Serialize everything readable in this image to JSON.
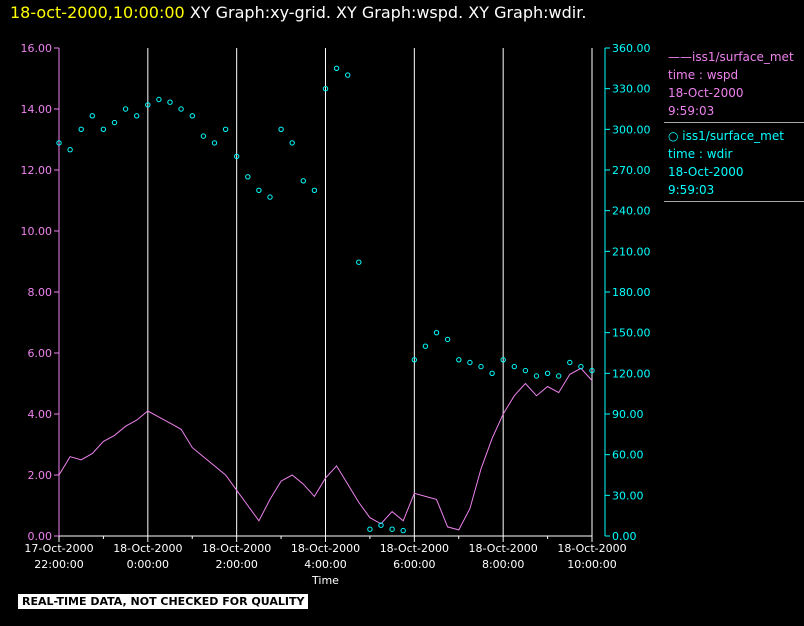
{
  "header": {
    "datetime": "18-oct-2000,10:00:00",
    "titles": "XY Graph:xy-grid.  XY Graph:wspd.  XY Graph:wdir."
  },
  "legend": {
    "wspd": {
      "series": "iss1/surface_met",
      "field": "time : wspd",
      "date": "18-Oct-2000",
      "time": "9:59:03"
    },
    "wdir": {
      "series": "iss1/surface_met",
      "field": "time : wdir",
      "date": "18-Oct-2000",
      "time": "9:59:03"
    }
  },
  "notice": "REAL-TIME DATA, NOT CHECKED FOR QUALITY",
  "colors": {
    "wspd": "#ee82ee",
    "wdir": "#00ffff",
    "grid": "#ffffff",
    "background": "#000000"
  },
  "chart_data": {
    "type": "line",
    "xlabel": "Time",
    "x_range_hours": [
      22,
      34
    ],
    "x_ticks": [
      {
        "date": "17-Oct-2000",
        "time": "22:00:00"
      },
      {
        "date": "18-Oct-2000",
        "time": "0:00:00"
      },
      {
        "date": "18-Oct-2000",
        "time": "2:00:00"
      },
      {
        "date": "18-Oct-2000",
        "time": "4:00:00"
      },
      {
        "date": "18-Oct-2000",
        "time": "6:00:00"
      },
      {
        "date": "18-Oct-2000",
        "time": "8:00:00"
      },
      {
        "date": "18-Oct-2000",
        "time": "10:00:00"
      }
    ],
    "y_left": {
      "range": [
        0,
        16
      ],
      "ticks": [
        "0.00",
        "2.00",
        "4.00",
        "6.00",
        "8.00",
        "10.00",
        "12.00",
        "14.00",
        "16.00"
      ]
    },
    "y_right": {
      "range": [
        0,
        360
      ],
      "ticks": [
        "0.00",
        "30.00",
        "60.00",
        "90.00",
        "120.00",
        "150.00",
        "180.00",
        "210.00",
        "240.00",
        "270.00",
        "300.00",
        "330.00",
        "360.00"
      ]
    },
    "grid": "vertical",
    "series": [
      {
        "name": "iss1/surface_met time : wspd",
        "axis": "left",
        "style": "line",
        "points": [
          [
            22.0,
            2.0
          ],
          [
            22.25,
            2.6
          ],
          [
            22.5,
            2.5
          ],
          [
            22.75,
            2.7
          ],
          [
            23.0,
            3.1
          ],
          [
            23.25,
            3.3
          ],
          [
            23.5,
            3.6
          ],
          [
            23.75,
            3.8
          ],
          [
            24.0,
            4.1
          ],
          [
            24.25,
            3.9
          ],
          [
            24.5,
            3.7
          ],
          [
            24.75,
            3.5
          ],
          [
            25.0,
            2.9
          ],
          [
            25.25,
            2.6
          ],
          [
            25.5,
            2.3
          ],
          [
            25.75,
            2.0
          ],
          [
            26.0,
            1.5
          ],
          [
            26.25,
            1.0
          ],
          [
            26.5,
            0.5
          ],
          [
            26.75,
            1.2
          ],
          [
            27.0,
            1.8
          ],
          [
            27.25,
            2.0
          ],
          [
            27.5,
            1.7
          ],
          [
            27.75,
            1.3
          ],
          [
            28.0,
            1.9
          ],
          [
            28.25,
            2.3
          ],
          [
            28.5,
            1.7
          ],
          [
            28.75,
            1.1
          ],
          [
            29.0,
            0.6
          ],
          [
            29.25,
            0.4
          ],
          [
            29.5,
            0.8
          ],
          [
            29.75,
            0.5
          ],
          [
            30.0,
            1.4
          ],
          [
            30.25,
            1.3
          ],
          [
            30.5,
            1.2
          ],
          [
            30.75,
            0.3
          ],
          [
            31.0,
            0.2
          ],
          [
            31.25,
            0.9
          ],
          [
            31.5,
            2.2
          ],
          [
            31.75,
            3.2
          ],
          [
            32.0,
            4.0
          ],
          [
            32.25,
            4.6
          ],
          [
            32.5,
            5.0
          ],
          [
            32.75,
            4.6
          ],
          [
            33.0,
            4.9
          ],
          [
            33.25,
            4.7
          ],
          [
            33.5,
            5.3
          ],
          [
            33.75,
            5.5
          ],
          [
            34.0,
            5.1
          ]
        ]
      },
      {
        "name": "iss1/surface_met time : wdir",
        "axis": "right",
        "style": "circle",
        "points": [
          [
            22.0,
            290
          ],
          [
            22.25,
            285
          ],
          [
            22.5,
            300
          ],
          [
            22.75,
            310
          ],
          [
            23.0,
            300
          ],
          [
            23.25,
            305
          ],
          [
            23.5,
            315
          ],
          [
            23.75,
            310
          ],
          [
            24.0,
            318
          ],
          [
            24.25,
            322
          ],
          [
            24.5,
            320
          ],
          [
            24.75,
            315
          ],
          [
            25.0,
            310
          ],
          [
            25.25,
            295
          ],
          [
            25.5,
            290
          ],
          [
            25.75,
            300
          ],
          [
            26.0,
            280
          ],
          [
            26.25,
            265
          ],
          [
            26.5,
            255
          ],
          [
            26.75,
            250
          ],
          [
            27.0,
            300
          ],
          [
            27.25,
            290
          ],
          [
            27.5,
            262
          ],
          [
            27.75,
            255
          ],
          [
            28.0,
            330
          ],
          [
            28.25,
            345
          ],
          [
            28.5,
            340
          ],
          [
            28.75,
            202
          ],
          [
            29.0,
            5
          ],
          [
            29.25,
            8
          ],
          [
            29.5,
            5
          ],
          [
            29.75,
            4
          ],
          [
            30.0,
            130
          ],
          [
            30.25,
            140
          ],
          [
            30.5,
            150
          ],
          [
            30.75,
            145
          ],
          [
            31.0,
            130
          ],
          [
            31.25,
            128
          ],
          [
            31.5,
            125
          ],
          [
            31.75,
            120
          ],
          [
            32.0,
            130
          ],
          [
            32.25,
            125
          ],
          [
            32.5,
            122
          ],
          [
            32.75,
            118
          ],
          [
            33.0,
            120
          ],
          [
            33.25,
            118
          ],
          [
            33.5,
            128
          ],
          [
            33.75,
            125
          ],
          [
            34.0,
            122
          ]
        ]
      }
    ]
  }
}
